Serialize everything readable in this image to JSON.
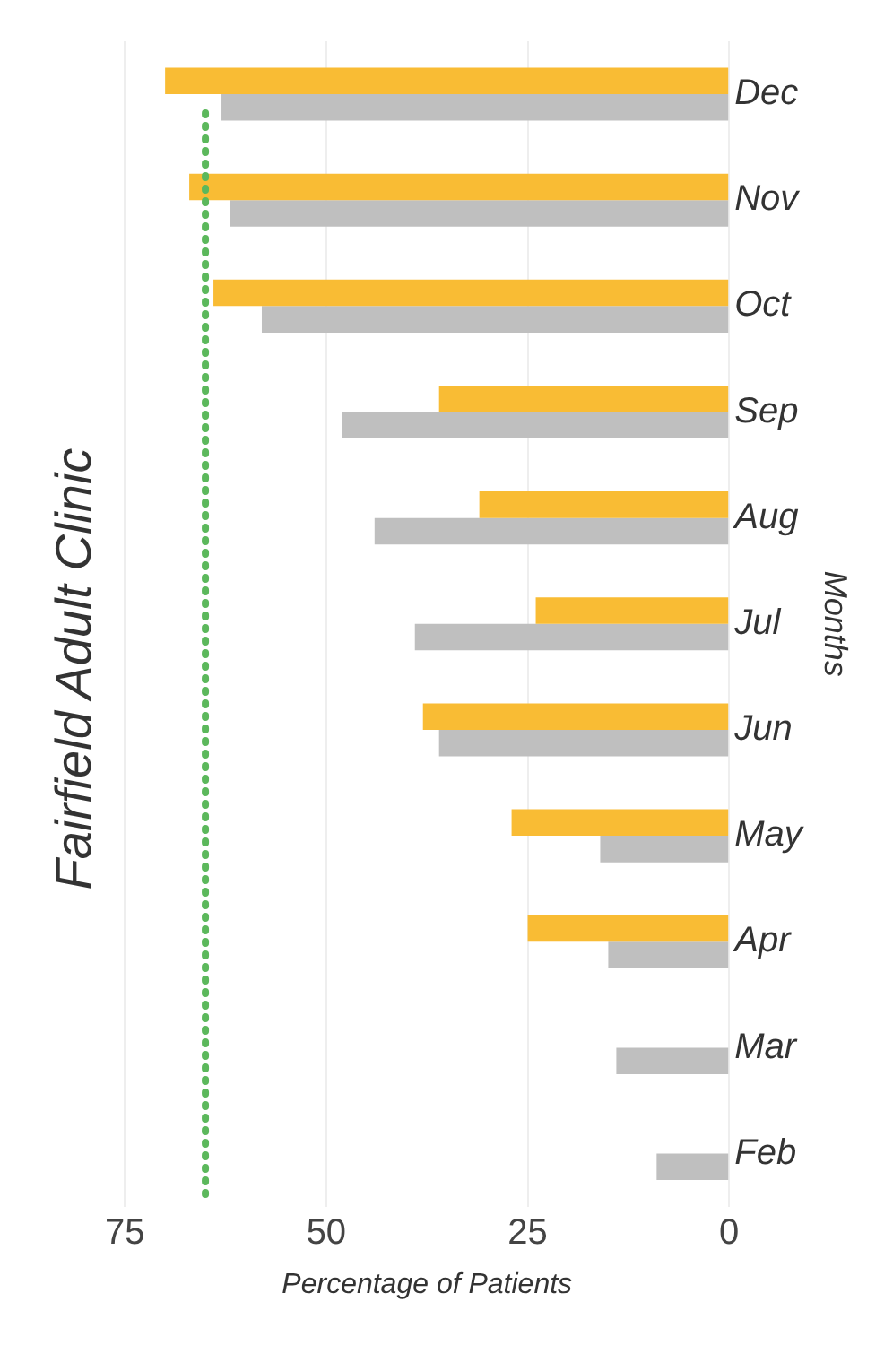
{
  "chart_data": {
    "type": "bar",
    "orientation": "horizontal",
    "title": "Fairfield Adult Clinic",
    "xlabel": "Percentage of Patients",
    "ylabel": "Months",
    "categories": [
      "Dec",
      "Nov",
      "Oct",
      "Sep",
      "Aug",
      "Jul",
      "Jun",
      "May",
      "Apr",
      "Mar",
      "Feb"
    ],
    "series": [
      {
        "color": "#f9bc34",
        "values": [
          70,
          67,
          64,
          36,
          31,
          24,
          38,
          27,
          25,
          null,
          null
        ]
      },
      {
        "color": "#bfbfbf",
        "values": [
          63,
          62,
          58,
          48,
          44,
          39,
          36,
          16,
          15,
          14,
          9
        ]
      }
    ],
    "xlim": [
      75,
      0
    ],
    "xticks": [
      75,
      50,
      25,
      0
    ],
    "grid": "x",
    "legend": false,
    "ref_lines": [
      {
        "axis": "x",
        "value": 65,
        "color": "#5cb85c",
        "line_style": "dotted"
      }
    ]
  }
}
